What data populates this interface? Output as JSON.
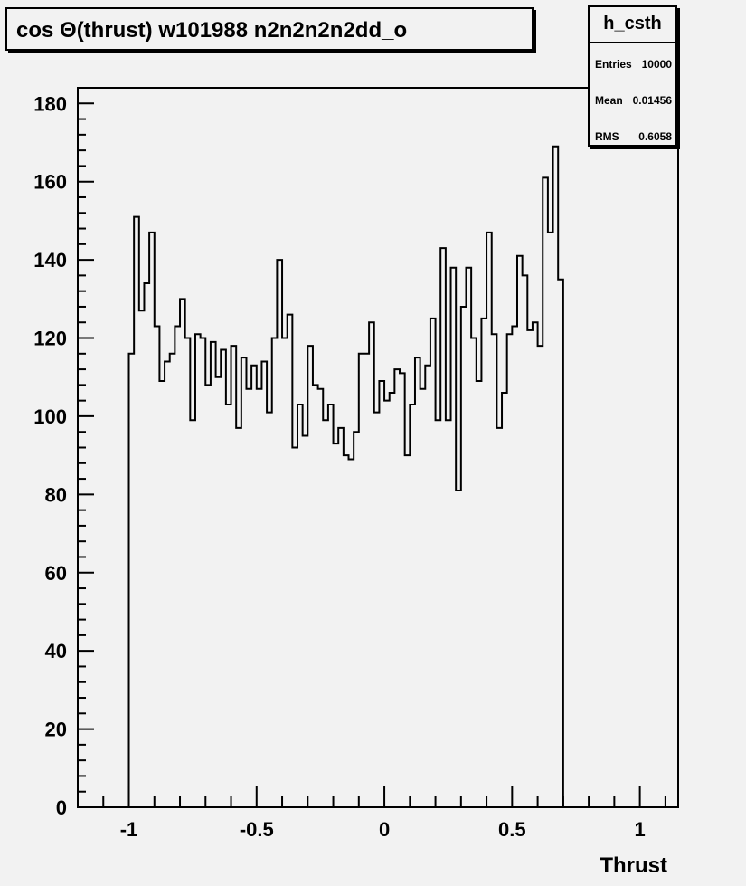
{
  "title": "cos Θ(thrust) w101988 n2n2n2n2dd_o",
  "stats": {
    "name": "h_csth",
    "rows": [
      {
        "key": "Entries",
        "value": "10000"
      },
      {
        "key": "Mean",
        "value": "0.01456"
      },
      {
        "key": "RMS",
        "value": "0.6058"
      }
    ]
  },
  "chart_data": {
    "type": "histogram",
    "xlabel": "Thrust",
    "ylabel": "",
    "xlim": [
      -1.2,
      1.15
    ],
    "ylim": [
      0,
      184
    ],
    "xticks": [
      -1,
      -0.5,
      0,
      0.5,
      1
    ],
    "xtick_labels": [
      "-1",
      "-0.5",
      "0",
      "0.5",
      "1"
    ],
    "yticks": [
      0,
      20,
      40,
      60,
      80,
      100,
      120,
      140,
      160,
      180
    ],
    "ytick_labels": [
      "0",
      "20",
      "40",
      "60",
      "80",
      "100",
      "120",
      "140",
      "160",
      "180"
    ],
    "bin_edges_start": -1.0,
    "bin_width": 0.02,
    "values": [
      116,
      151,
      127,
      134,
      147,
      123,
      109,
      114,
      116,
      123,
      130,
      120,
      99,
      121,
      120,
      108,
      119,
      110,
      117,
      103,
      118,
      97,
      115,
      107,
      113,
      107,
      114,
      101,
      120,
      140,
      120,
      126,
      92,
      103,
      95,
      118,
      108,
      107,
      99,
      103,
      93,
      97,
      90,
      89,
      96,
      116,
      116,
      124,
      101,
      109,
      104,
      106,
      112,
      111,
      90,
      103,
      115,
      107,
      113,
      125,
      99,
      143,
      99,
      138,
      81,
      128,
      138,
      120,
      109,
      125,
      147,
      121,
      97,
      106,
      121,
      123,
      141,
      136,
      122,
      124,
      118,
      161,
      147,
      169,
      135
    ],
    "line_color": "#000000",
    "background": "#f2f2f2"
  }
}
